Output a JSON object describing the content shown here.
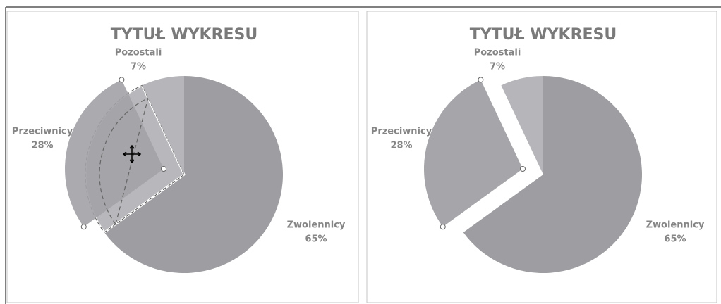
{
  "chart_data": [
    {
      "type": "pie",
      "title": "TYTUŁ WYKRESU",
      "categories": [
        "Zwolennicy",
        "Przeciwnicy",
        "Pozostali"
      ],
      "values": [
        65,
        28,
        7
      ],
      "value_labels": [
        "65%",
        "28%",
        "7%"
      ],
      "colors": [
        "#9e9ea2",
        "#a6a6aa",
        "#b6b6ba"
      ]
    },
    {
      "type": "pie",
      "title": "TYTUŁ WYKRESU",
      "categories": [
        "Zwolennicy",
        "Przeciwnicy",
        "Pozostali"
      ],
      "values": [
        65,
        28,
        7
      ],
      "value_labels": [
        "65%",
        "28%",
        "7%"
      ],
      "colors": [
        "#9e9ea2",
        "#a6a6aa",
        "#b6b6ba"
      ]
    }
  ]
}
